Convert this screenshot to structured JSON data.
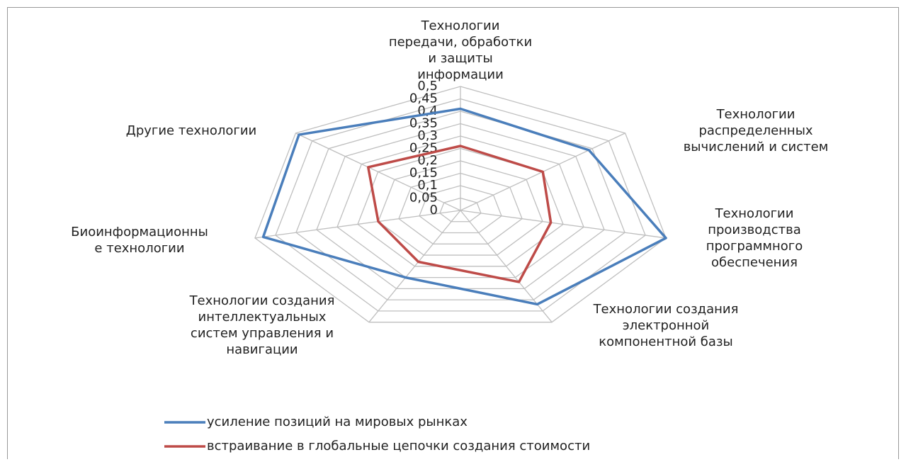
{
  "chart_data": {
    "type": "radar",
    "categories": [
      "Технологии\nпередачи, обработки\nи защиты\nинформации",
      "Технологии\nраспределенных\nвычислений и систем",
      "Технологии\nпроизводства\nпрограммного\nобеспечения",
      "Технологии создания\nэлектронной\nкомпонентной базы",
      "Технологии создания\nинтеллектуальных\nсистем управления и\nнавигации",
      "Биоинформационны\nе технологии",
      "Другие технологии"
    ],
    "series": [
      {
        "name": "усиление позиций на мировых рынках",
        "color": "#4a7ebb",
        "values": [
          0.41,
          0.39,
          0.5,
          0.42,
          0.3,
          0.48,
          0.49
        ]
      },
      {
        "name": "встраивание в глобальные цепочки создания стоимости",
        "color": "#be4b48",
        "values": [
          0.26,
          0.25,
          0.22,
          0.32,
          0.23,
          0.2,
          0.28
        ]
      }
    ],
    "ylim": [
      0,
      0.5
    ],
    "yticks": [
      0,
      {
        "value": 0.05,
        "label": "0,05"
      },
      {
        "value": 0.1,
        "label": "0,1"
      },
      {
        "value": 0.15,
        "label": "0,15"
      },
      {
        "value": 0.2,
        "label": "0,2"
      },
      {
        "value": 0.25,
        "label": "0,25"
      },
      {
        "value": 0.3,
        "label": "0,3"
      },
      {
        "value": 0.35,
        "label": "0,35"
      },
      {
        "value": 0.4,
        "label": "0,4"
      },
      {
        "value": 0.45,
        "label": "0,45"
      },
      {
        "value": 0.5,
        "label": "0,5"
      }
    ],
    "grid": true,
    "legend": "bottom"
  }
}
